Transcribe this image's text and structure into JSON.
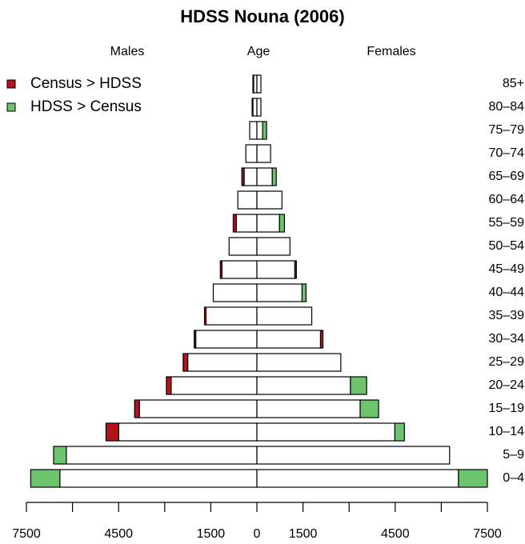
{
  "chart_data": {
    "type": "pyramid",
    "title": "HDSS Nouna (2006)",
    "left_label": "Males",
    "center_label": "Age",
    "right_label": "Females",
    "categories": [
      "0–4",
      "5–9",
      "10–14",
      "15–19",
      "20–24",
      "25–29",
      "30–34",
      "35–39",
      "40–44",
      "45–49",
      "50–54",
      "55–59",
      "60–64",
      "65–69",
      "70–74",
      "75–79",
      "80–84",
      "85+"
    ],
    "base": {
      "color": "#ffffff",
      "males": [
        -6410,
        -6200,
        -4500,
        -3825,
        -2790,
        -2250,
        -1990,
        -1655,
        -1420,
        -1140,
        -905,
        -670,
        -620,
        -415,
        -360,
        -235,
        -130,
        -105
      ],
      "females": [
        6560,
        6270,
        4490,
        3360,
        3045,
        2730,
        2070,
        1785,
        1470,
        1235,
        1075,
        735,
        815,
        500,
        445,
        185,
        130,
        130
      ]
    },
    "series": [
      {
        "name": "Census > HDSS",
        "color": "#b5121b",
        "males": [
          0,
          0,
          -410,
          -155,
          -155,
          -150,
          -50,
          -50,
          0,
          -50,
          0,
          -100,
          0,
          -75,
          0,
          0,
          -25,
          -25
        ],
        "females": [
          0,
          0,
          0,
          0,
          0,
          0,
          80,
          0,
          0,
          50,
          0,
          0,
          0,
          0,
          0,
          0,
          0,
          0
        ]
      },
      {
        "name": "HDSS > Census",
        "color": "#6cc46c",
        "males": [
          -950,
          -415,
          0,
          0,
          0,
          0,
          0,
          0,
          0,
          0,
          0,
          0,
          0,
          0,
          0,
          0,
          0,
          0
        ],
        "females": [
          940,
          0,
          310,
          600,
          525,
          0,
          0,
          0,
          130,
          0,
          0,
          160,
          0,
          130,
          0,
          130,
          0,
          0
        ]
      }
    ],
    "xlim": [
      -7500,
      7500
    ],
    "xticks": [
      {
        "value": -7500,
        "label": "7500"
      },
      {
        "value": -6000,
        "label": null
      },
      {
        "value": -4500,
        "label": "4500"
      },
      {
        "value": -3000,
        "label": null
      },
      {
        "value": -1500,
        "label": "1500"
      },
      0,
      1500,
      {
        "value": 3000,
        "label": null
      },
      4500,
      {
        "value": 6000,
        "label": null
      },
      7500
    ],
    "legend": "top-left"
  }
}
